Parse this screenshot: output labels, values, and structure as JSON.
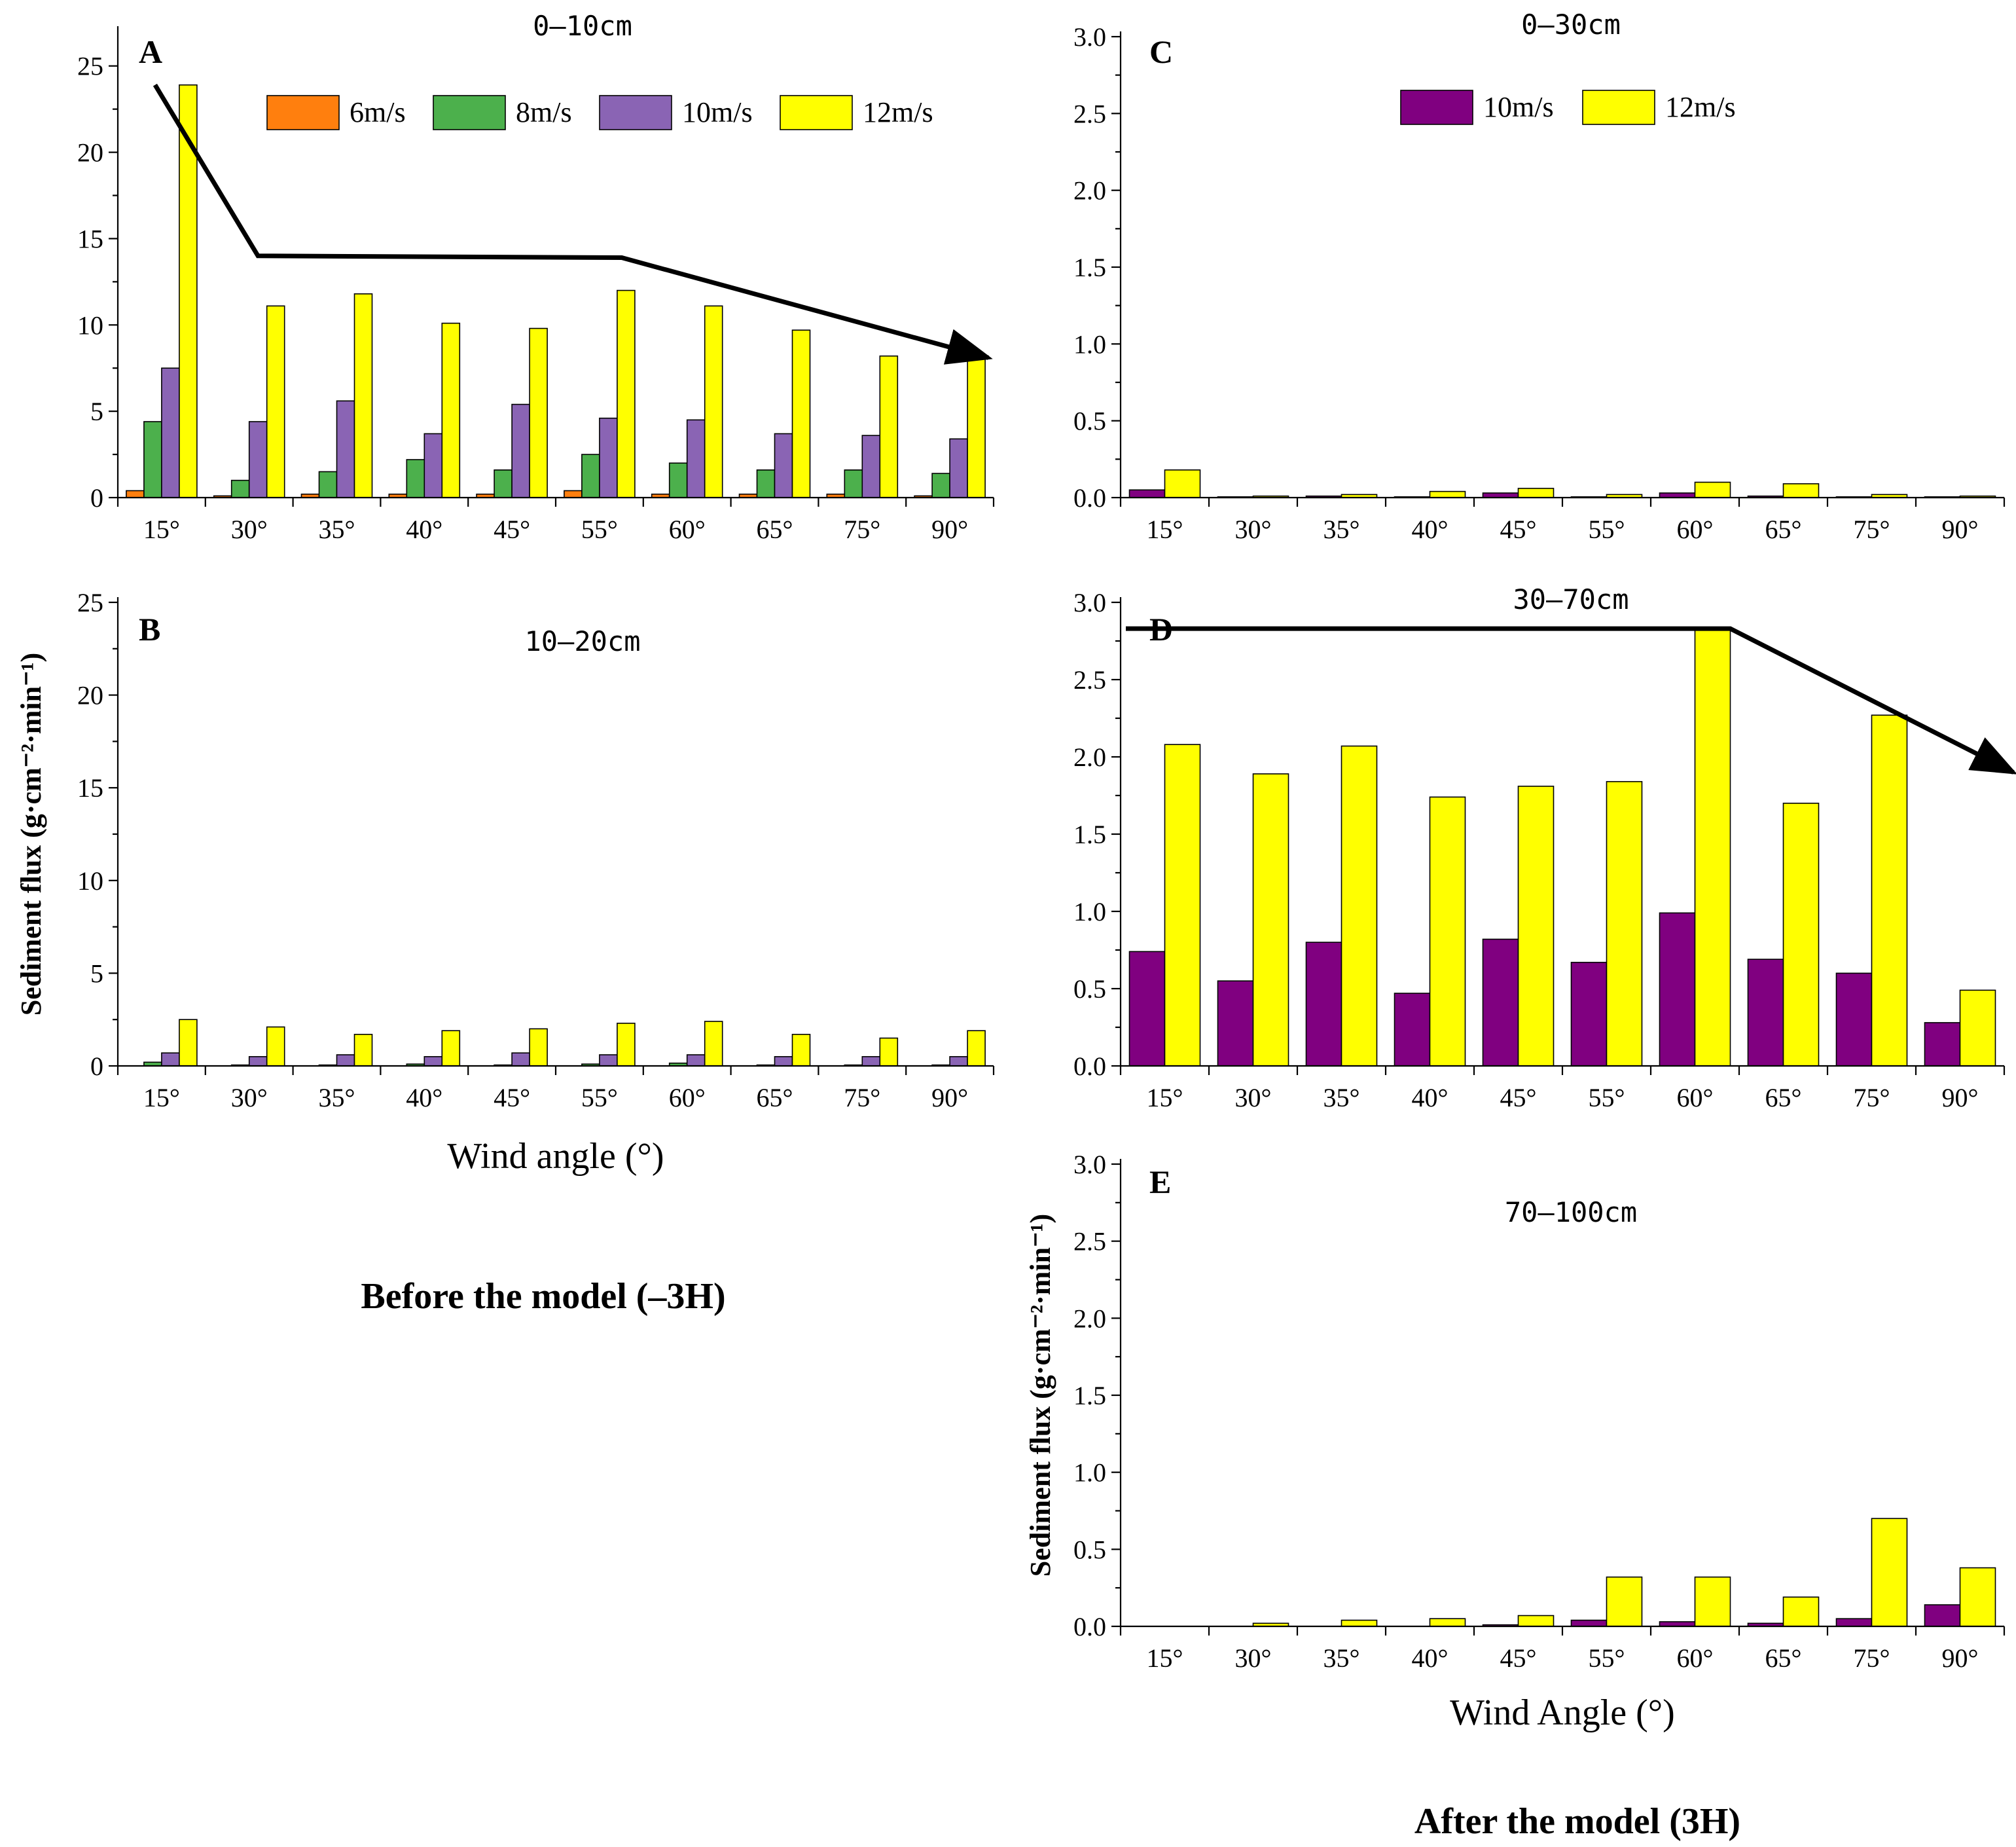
{
  "chart_data": [
    {
      "id": "A",
      "type": "bar",
      "panel_label": "A",
      "title": "0—10cm",
      "categories": [
        "15°",
        "30°",
        "35°",
        "40°",
        "45°",
        "55°",
        "60°",
        "65°",
        "75°",
        "90°"
      ],
      "ylim": [
        0,
        27
      ],
      "yticks": [
        0,
        5,
        10,
        15,
        20,
        25
      ],
      "series": [
        {
          "name": "6m/s",
          "color": "#ff7f0e",
          "values": [
            0.4,
            0.1,
            0.2,
            0.2,
            0.2,
            0.4,
            0.2,
            0.2,
            0.2,
            0.1
          ]
        },
        {
          "name": "8m/s",
          "color": "#4cb04c",
          "values": [
            4.4,
            1.0,
            1.5,
            2.2,
            1.6,
            2.5,
            2.0,
            1.6,
            1.6,
            1.4
          ]
        },
        {
          "name": "10m/s",
          "color": "#8a64b4",
          "values": [
            7.5,
            4.4,
            5.6,
            3.7,
            5.4,
            4.6,
            4.5,
            3.7,
            3.6,
            3.4
          ]
        },
        {
          "name": "12m/s",
          "color": "#ffff00",
          "values": [
            23.9,
            11.1,
            11.8,
            10.1,
            9.8,
            12.0,
            11.1,
            9.7,
            8.2,
            8.1
          ]
        }
      ],
      "legend": [
        "6m/s",
        "8m/s",
        "10m/s",
        "12m/s"
      ],
      "trend_arrow": [
        [
          15,
          23.9
        ],
        [
          30,
          14.0
        ],
        [
          55,
          13.9
        ],
        [
          90,
          8.1
        ]
      ]
    },
    {
      "id": "B",
      "type": "bar",
      "panel_label": "B",
      "title": "10—20cm",
      "xlabel": "Wind angle (°)",
      "ylabel": "Sediment flux (g·cm⁻²·min⁻¹)",
      "categories": [
        "15°",
        "30°",
        "35°",
        "40°",
        "45°",
        "55°",
        "60°",
        "65°",
        "75°",
        "90°"
      ],
      "ylim": [
        0,
        25
      ],
      "yticks": [
        0,
        5,
        10,
        15,
        20,
        25
      ],
      "series": [
        {
          "name": "6m/s",
          "color": "#ff7f0e",
          "values": [
            0,
            0,
            0,
            0,
            0,
            0,
            0,
            0,
            0,
            0
          ]
        },
        {
          "name": "8m/s",
          "color": "#4cb04c",
          "values": [
            0.2,
            0.05,
            0.05,
            0.1,
            0.05,
            0.1,
            0.15,
            0.05,
            0.05,
            0.05
          ]
        },
        {
          "name": "10m/s",
          "color": "#8a64b4",
          "values": [
            0.7,
            0.5,
            0.6,
            0.5,
            0.7,
            0.6,
            0.6,
            0.5,
            0.5,
            0.5
          ]
        },
        {
          "name": "12m/s",
          "color": "#ffff00",
          "values": [
            2.5,
            2.1,
            1.7,
            1.9,
            2.0,
            2.3,
            2.4,
            1.7,
            1.5,
            1.9
          ]
        }
      ]
    },
    {
      "id": "C",
      "type": "bar",
      "panel_label": "C",
      "title": "0—30cm",
      "categories": [
        "15°",
        "30°",
        "35°",
        "40°",
        "45°",
        "55°",
        "60°",
        "65°",
        "75°",
        "90°"
      ],
      "ylim": [
        0,
        3.0
      ],
      "yticks": [
        "0.0",
        "0.5",
        "1.0",
        "1.5",
        "2.0",
        "2.5",
        "3.0"
      ],
      "series": [
        {
          "name": "10m/s",
          "color": "#800080",
          "values": [
            0.05,
            0.005,
            0.01,
            0.005,
            0.03,
            0.005,
            0.03,
            0.01,
            0.005,
            0.005
          ]
        },
        {
          "name": "12m/s",
          "color": "#ffff00",
          "values": [
            0.18,
            0.01,
            0.02,
            0.04,
            0.06,
            0.02,
            0.1,
            0.09,
            0.02,
            0.01
          ]
        }
      ],
      "legend": [
        "10m/s",
        "12m/s"
      ]
    },
    {
      "id": "D",
      "type": "bar",
      "panel_label": "D",
      "title": "30—70cm",
      "categories": [
        "15°",
        "30°",
        "35°",
        "40°",
        "45°",
        "55°",
        "60°",
        "65°",
        "75°",
        "90°"
      ],
      "ylim": [
        0,
        3.0
      ],
      "yticks": [
        "0.0",
        "0.5",
        "1.0",
        "1.5",
        "2.0",
        "2.5",
        "3.0"
      ],
      "series": [
        {
          "name": "10m/s",
          "color": "#800080",
          "values": [
            0.74,
            0.55,
            0.8,
            0.47,
            0.82,
            0.67,
            0.99,
            0.69,
            0.6,
            0.28
          ]
        },
        {
          "name": "12m/s",
          "color": "#ffff00",
          "values": [
            2.08,
            1.89,
            2.07,
            1.74,
            1.81,
            1.84,
            2.83,
            1.7,
            2.27,
            0.49
          ]
        }
      ],
      "trend_arrow": [
        [
          15,
          2.83
        ],
        [
          60,
          2.83
        ],
        [
          90,
          1.9
        ]
      ]
    },
    {
      "id": "E",
      "type": "bar",
      "panel_label": "E",
      "title": "70—100cm",
      "xlabel": "Wind Angle (°)",
      "ylabel": "Sediment flux (g·cm⁻²·min⁻¹)",
      "categories": [
        "15°",
        "30°",
        "35°",
        "40°",
        "45°",
        "55°",
        "60°",
        "65°",
        "75°",
        "90°"
      ],
      "ylim": [
        0,
        3.0
      ],
      "yticks": [
        "0.0",
        "0.5",
        "1.0",
        "1.5",
        "2.0",
        "2.5",
        "3.0"
      ],
      "series": [
        {
          "name": "10m/s",
          "color": "#800080",
          "values": [
            0.0,
            0.0,
            0.0,
            0.0,
            0.01,
            0.04,
            0.03,
            0.02,
            0.05,
            0.14
          ]
        },
        {
          "name": "12m/s",
          "color": "#ffff00",
          "values": [
            0.0,
            0.02,
            0.04,
            0.05,
            0.07,
            0.32,
            0.32,
            0.19,
            0.7,
            0.38
          ]
        }
      ]
    }
  ],
  "captions": {
    "left": "Before the model (–3H)",
    "right": "After the model (3H)"
  }
}
